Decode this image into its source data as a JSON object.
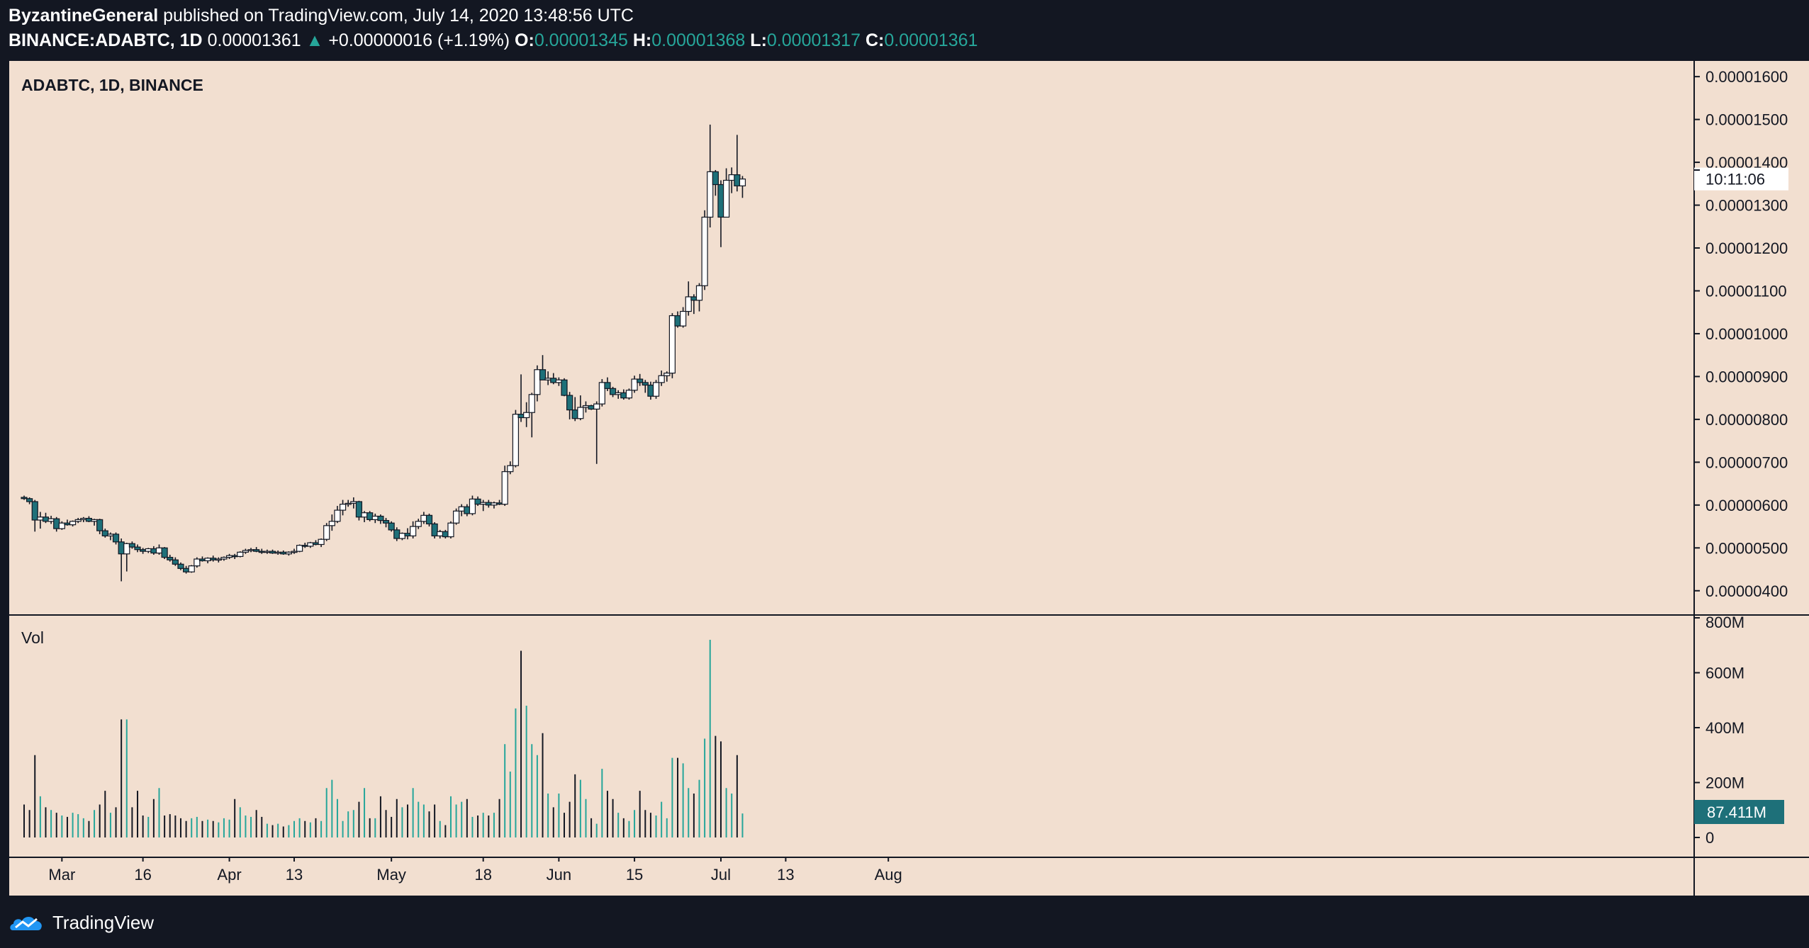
{
  "header": {
    "author": "ByzantineGeneral",
    "published_text": "published on TradingView.com, July 14, 2020 13:48:56 UTC",
    "symbol": "BINANCE:ADABTC, 1D",
    "last": "0.00001361",
    "change": "+0.00000016 (+1.19%)",
    "o_label": "O:",
    "o_value": "0.00001345",
    "h_label": "H:",
    "h_value": "0.00001368",
    "l_label": "L:",
    "l_value": "0.00001317",
    "c_label": "C:",
    "c_value": "0.00001361"
  },
  "chart_title": "ADABTC, 1D, BINANCE",
  "volume_label": "Vol",
  "countdown": "10:11:06",
  "volume_last_label": "87.411M",
  "footer": {
    "brand": "TradingView"
  },
  "colors": {
    "up": "#ffffff",
    "down": "#1e7079",
    "vol_up": "#26a69a",
    "vol_down": "#131722",
    "bg": "#f2dfd0",
    "frame": "#131722"
  },
  "chart_data": {
    "type": "candlestick",
    "title": "ADABTC, 1D, BINANCE",
    "price_axis": {
      "min": 3.5e-06,
      "max": 1.63e-05,
      "ticks": [
        4e-06,
        5e-06,
        6e-06,
        7e-06,
        8e-06,
        9e-06,
        1e-05,
        1.1e-05,
        1.2e-05,
        1.3e-05,
        1.4e-05,
        1.5e-05,
        1.6e-05
      ],
      "tick_labels": [
        "0.00000400",
        "0.00000500",
        "0.00000600",
        "0.00000700",
        "0.00000800",
        "0.00000900",
        "0.00001000",
        "0.00001100",
        "0.00001200",
        "0.00001300",
        "0.00001400",
        "0.00001500",
        "0.00001600"
      ]
    },
    "volume_axis": {
      "max": 800,
      "ticks": [
        0,
        200,
        400,
        600,
        800
      ],
      "tick_labels": [
        "0",
        "200M",
        "400M",
        "600M",
        "800M"
      ]
    },
    "x_labels": [
      {
        "label": "Mar",
        "day": 7
      },
      {
        "label": "16",
        "day": 22
      },
      {
        "label": "Apr",
        "day": 38
      },
      {
        "label": "13",
        "day": 50
      },
      {
        "label": "May",
        "day": 68
      },
      {
        "label": "18",
        "day": 85
      },
      {
        "label": "Jun",
        "day": 99
      },
      {
        "label": "15",
        "day": 113
      },
      {
        "label": "Jul",
        "day": 129
      },
      {
        "label": "13",
        "day": 141
      },
      {
        "label": "Aug",
        "day": 160
      }
    ],
    "day_width": 7.62,
    "first_day_x": 21,
    "candles": [
      [
        6.18,
        6.22,
        6.12,
        6.15,
        120
      ],
      [
        6.15,
        6.18,
        6.02,
        6.08,
        100
      ],
      [
        6.08,
        6.12,
        5.38,
        5.65,
        300
      ],
      [
        5.65,
        5.84,
        5.45,
        5.72,
        150
      ],
      [
        5.72,
        5.82,
        5.58,
        5.62,
        110
      ],
      [
        5.62,
        5.75,
        5.56,
        5.68,
        100
      ],
      [
        5.68,
        5.72,
        5.38,
        5.45,
        90
      ],
      [
        5.45,
        5.62,
        5.42,
        5.58,
        80
      ],
      [
        5.58,
        5.66,
        5.52,
        5.54,
        75
      ],
      [
        5.54,
        5.64,
        5.5,
        5.62,
        90
      ],
      [
        5.62,
        5.7,
        5.58,
        5.66,
        85
      ],
      [
        5.66,
        5.72,
        5.6,
        5.69,
        70
      ],
      [
        5.69,
        5.74,
        5.6,
        5.62,
        60
      ],
      [
        5.62,
        5.68,
        5.52,
        5.66,
        100
      ],
      [
        5.66,
        5.68,
        5.32,
        5.4,
        120
      ],
      [
        5.4,
        5.45,
        5.24,
        5.28,
        170
      ],
      [
        5.28,
        5.36,
        5.18,
        5.32,
        90
      ],
      [
        5.32,
        5.36,
        5.08,
        5.14,
        110
      ],
      [
        5.14,
        5.22,
        4.22,
        4.86,
        430
      ],
      [
        4.86,
        5.12,
        4.45,
        5.1,
        430
      ],
      [
        5.1,
        5.15,
        4.98,
        5.02,
        110
      ],
      [
        5.02,
        5.08,
        4.9,
        4.96,
        170
      ],
      [
        4.96,
        5.0,
        4.86,
        4.92,
        80
      ],
      [
        4.92,
        5.0,
        4.88,
        4.98,
        75
      ],
      [
        4.98,
        5.04,
        4.84,
        4.88,
        140
      ],
      [
        4.88,
        5.08,
        4.84,
        5.0,
        180
      ],
      [
        5.0,
        5.02,
        4.74,
        4.78,
        80
      ],
      [
        4.78,
        4.84,
        4.68,
        4.72,
        85
      ],
      [
        4.72,
        4.78,
        4.58,
        4.62,
        80
      ],
      [
        4.62,
        4.66,
        4.48,
        4.52,
        70
      ],
      [
        4.52,
        4.58,
        4.4,
        4.44,
        60
      ],
      [
        4.44,
        4.6,
        4.42,
        4.58,
        70
      ],
      [
        4.58,
        4.78,
        4.54,
        4.74,
        75
      ],
      [
        4.74,
        4.8,
        4.68,
        4.7,
        60
      ],
      [
        4.7,
        4.78,
        4.64,
        4.76,
        65
      ],
      [
        4.76,
        4.82,
        4.68,
        4.72,
        60
      ],
      [
        4.72,
        4.78,
        4.66,
        4.74,
        55
      ],
      [
        4.74,
        4.8,
        4.7,
        4.78,
        70
      ],
      [
        4.78,
        4.86,
        4.74,
        4.82,
        65
      ],
      [
        4.82,
        4.86,
        4.74,
        4.8,
        140
      ],
      [
        4.8,
        4.92,
        4.78,
        4.9,
        110
      ],
      [
        4.9,
        4.98,
        4.86,
        4.94,
        80
      ],
      [
        4.94,
        5.0,
        4.9,
        4.96,
        75
      ],
      [
        4.96,
        5.02,
        4.9,
        4.92,
        100
      ],
      [
        4.92,
        4.98,
        4.86,
        4.9,
        75
      ],
      [
        4.9,
        4.96,
        4.86,
        4.92,
        50
      ],
      [
        4.92,
        4.96,
        4.86,
        4.88,
        45
      ],
      [
        4.88,
        4.94,
        4.84,
        4.9,
        50
      ],
      [
        4.9,
        4.94,
        4.84,
        4.86,
        40
      ],
      [
        4.86,
        4.92,
        4.82,
        4.9,
        45
      ],
      [
        4.9,
        4.98,
        4.86,
        4.92,
        60
      ],
      [
        4.92,
        5.08,
        4.9,
        5.06,
        70
      ],
      [
        5.06,
        5.12,
        5.0,
        5.04,
        60
      ],
      [
        5.04,
        5.14,
        5.0,
        5.12,
        55
      ],
      [
        5.12,
        5.18,
        5.06,
        5.08,
        70
      ],
      [
        5.08,
        5.22,
        5.02,
        5.2,
        60
      ],
      [
        5.2,
        5.58,
        5.16,
        5.52,
        180
      ],
      [
        5.52,
        5.78,
        5.4,
        5.62,
        210
      ],
      [
        5.62,
        5.98,
        5.58,
        5.88,
        140
      ],
      [
        5.88,
        6.12,
        5.76,
        6.02,
        60
      ],
      [
        6.02,
        6.12,
        5.96,
        6.04,
        95
      ],
      [
        6.04,
        6.18,
        5.92,
        6.08,
        100
      ],
      [
        6.08,
        6.1,
        5.64,
        5.72,
        130
      ],
      [
        5.72,
        5.86,
        5.6,
        5.82,
        180
      ],
      [
        5.82,
        5.86,
        5.62,
        5.66,
        70
      ],
      [
        5.66,
        5.8,
        5.58,
        5.74,
        70
      ],
      [
        5.74,
        5.78,
        5.56,
        5.64,
        150
      ],
      [
        5.64,
        5.7,
        5.48,
        5.58,
        100
      ],
      [
        5.58,
        5.62,
        5.38,
        5.42,
        75
      ],
      [
        5.42,
        5.48,
        5.16,
        5.22,
        140
      ],
      [
        5.22,
        5.36,
        5.18,
        5.34,
        110
      ],
      [
        5.34,
        5.46,
        5.2,
        5.28,
        120
      ],
      [
        5.28,
        5.62,
        5.22,
        5.5,
        180
      ],
      [
        5.5,
        5.68,
        5.44,
        5.62,
        130
      ],
      [
        5.62,
        5.84,
        5.56,
        5.76,
        120
      ],
      [
        5.76,
        5.8,
        5.5,
        5.56,
        95
      ],
      [
        5.56,
        5.6,
        5.22,
        5.28,
        120
      ],
      [
        5.28,
        5.42,
        5.22,
        5.38,
        60
      ],
      [
        5.38,
        5.42,
        5.22,
        5.26,
        45
      ],
      [
        5.26,
        5.62,
        5.22,
        5.58,
        150
      ],
      [
        5.58,
        5.92,
        5.54,
        5.86,
        120
      ],
      [
        5.86,
        6.02,
        5.74,
        5.96,
        130
      ],
      [
        5.96,
        6.02,
        5.74,
        5.8,
        140
      ],
      [
        5.8,
        6.22,
        5.76,
        6.14,
        75
      ],
      [
        6.14,
        6.2,
        5.98,
        6.02,
        80
      ],
      [
        6.02,
        6.12,
        5.86,
        6.06,
        90
      ],
      [
        6.06,
        6.12,
        5.94,
        6.0,
        80
      ],
      [
        6.0,
        6.08,
        5.92,
        6.05,
        90
      ],
      [
        6.05,
        6.12,
        6.0,
        6.02,
        140
      ],
      [
        6.02,
        6.92,
        5.98,
        6.78,
        340
      ],
      [
        6.78,
        7.02,
        6.72,
        6.92,
        240
      ],
      [
        6.92,
        8.22,
        6.88,
        8.12,
        470
      ],
      [
        8.12,
        9.05,
        7.94,
        8.04,
        680
      ],
      [
        8.04,
        8.4,
        7.82,
        8.16,
        480
      ],
      [
        8.16,
        8.62,
        7.58,
        8.58,
        340
      ],
      [
        8.58,
        9.26,
        8.42,
        9.16,
        300
      ],
      [
        9.16,
        9.5,
        8.92,
        8.92,
        380
      ],
      [
        8.92,
        9.12,
        8.8,
        8.96,
        160
      ],
      [
        8.96,
        9.08,
        8.82,
        8.86,
        110
      ],
      [
        8.86,
        8.98,
        8.78,
        8.92,
        160
      ],
      [
        8.92,
        8.96,
        8.54,
        8.56,
        90
      ],
      [
        8.56,
        8.64,
        8.0,
        8.22,
        130
      ],
      [
        8.22,
        8.52,
        7.96,
        8.02,
        230
      ],
      [
        8.02,
        8.56,
        7.98,
        8.28,
        210
      ],
      [
        8.28,
        8.42,
        8.16,
        8.32,
        140
      ],
      [
        8.32,
        8.34,
        8.22,
        8.24,
        70
      ],
      [
        8.24,
        8.42,
        6.96,
        8.36,
        50
      ],
      [
        8.36,
        8.94,
        8.3,
        8.86,
        250
      ],
      [
        8.86,
        8.98,
        8.66,
        8.72,
        170
      ],
      [
        8.72,
        8.76,
        8.52,
        8.58,
        140
      ],
      [
        8.58,
        8.68,
        8.48,
        8.62,
        90
      ],
      [
        8.62,
        8.7,
        8.46,
        8.5,
        70
      ],
      [
        8.5,
        8.72,
        8.46,
        8.68,
        60
      ],
      [
        8.68,
        9.02,
        8.62,
        8.94,
        100
      ],
      [
        8.94,
        9.06,
        8.78,
        8.86,
        170
      ],
      [
        8.86,
        8.92,
        8.62,
        8.8,
        100
      ],
      [
        8.8,
        8.88,
        8.46,
        8.54,
        90
      ],
      [
        8.54,
        8.92,
        8.48,
        8.86,
        80
      ],
      [
        8.86,
        9.14,
        8.78,
        9.02,
        130
      ],
      [
        9.02,
        9.12,
        8.88,
        9.08,
        70
      ],
      [
        9.08,
        10.48,
        8.96,
        10.42,
        290
      ],
      [
        10.42,
        10.52,
        10.14,
        10.18,
        290
      ],
      [
        10.18,
        10.62,
        10.14,
        10.52,
        270
      ],
      [
        10.52,
        11.22,
        10.42,
        10.86,
        180
      ],
      [
        10.86,
        10.92,
        10.46,
        10.78,
        160
      ],
      [
        10.78,
        11.18,
        10.52,
        11.12,
        210
      ],
      [
        11.12,
        12.88,
        11.02,
        12.72,
        360
      ],
      [
        12.72,
        14.88,
        12.48,
        13.78,
        720
      ],
      [
        13.78,
        13.82,
        13.22,
        13.48,
        370
      ],
      [
        13.48,
        13.58,
        12.02,
        12.72,
        350
      ],
      [
        12.72,
        13.86,
        12.72,
        13.58,
        180
      ],
      [
        13.58,
        13.88,
        13.28,
        13.71,
        160
      ],
      [
        13.71,
        14.64,
        13.32,
        13.45,
        300
      ],
      [
        13.45,
        13.68,
        13.17,
        13.61,
        87.4
      ]
    ]
  }
}
